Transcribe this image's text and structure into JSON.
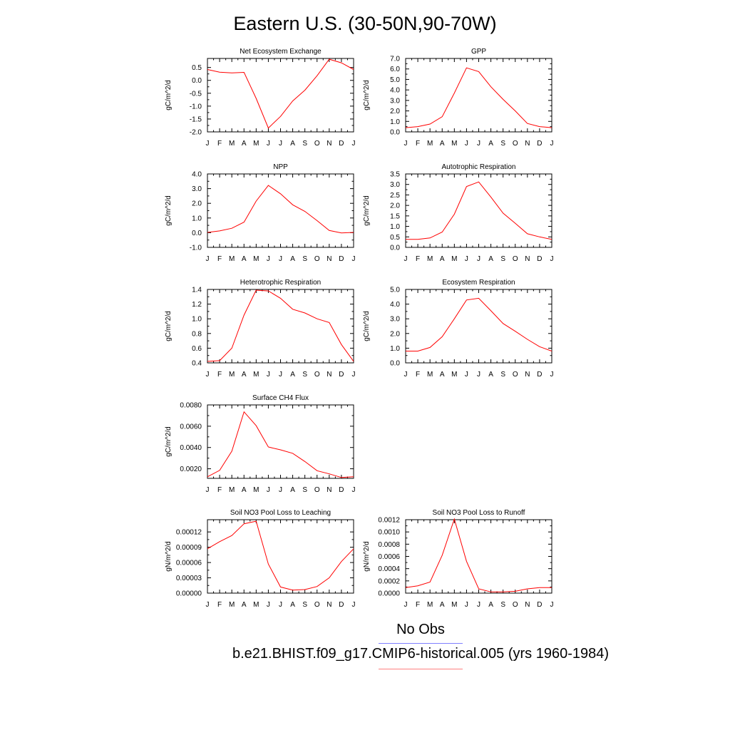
{
  "title": "Eastern U.S. (30-50N,90-70W)",
  "months": [
    "J",
    "F",
    "M",
    "A",
    "M",
    "J",
    "J",
    "A",
    "S",
    "O",
    "N",
    "D",
    "J"
  ],
  "colors": {
    "model": "#ff0000",
    "obs": "#8080ff",
    "model_legend": "#ff8080",
    "axis": "#000000"
  },
  "legend": {
    "obs_label": "No Obs",
    "model_label": "b.e21.BHIST.f09_g17.CMIP6-historical.005 (yrs 1960-1984)"
  },
  "chart_data": [
    {
      "type": "line",
      "title": "Net Ecosystem Exchange",
      "ylabel": "gC/m^2/d",
      "ylim": [
        -2.0,
        0.85
      ],
      "yticks": [
        -2.0,
        -1.5,
        -1.0,
        -0.5,
        0.0,
        0.5
      ],
      "ytick_labels": [
        "-2.0",
        "-1.5",
        "-1.0",
        "-0.5",
        "0.0",
        "0.5"
      ],
      "values": [
        0.42,
        0.32,
        0.29,
        0.31,
        -0.7,
        -1.85,
        -1.4,
        -0.8,
        -0.38,
        0.18,
        0.82,
        0.68,
        0.42
      ]
    },
    {
      "type": "line",
      "title": "GPP",
      "ylabel": "gC/m^2/d",
      "ylim": [
        0.0,
        7.0
      ],
      "yticks": [
        0,
        1,
        2,
        3,
        4,
        5,
        6,
        7
      ],
      "ytick_labels": [
        "0.0",
        "1.0",
        "2.0",
        "3.0",
        "4.0",
        "5.0",
        "6.0",
        "7.0"
      ],
      "values": [
        0.4,
        0.5,
        0.75,
        1.45,
        3.7,
        6.1,
        5.75,
        4.3,
        3.1,
        2.0,
        0.8,
        0.5,
        0.4
      ]
    },
    {
      "type": "line",
      "title": "NPP",
      "ylabel": "gC/m^2/d",
      "ylim": [
        -1.0,
        4.0
      ],
      "yticks": [
        -1,
        0,
        1,
        2,
        3,
        4
      ],
      "ytick_labels": [
        "-1.0",
        "0.0",
        "1.0",
        "2.0",
        "3.0",
        "4.0"
      ],
      "values": [
        0.02,
        0.12,
        0.3,
        0.72,
        2.15,
        3.22,
        2.65,
        1.9,
        1.45,
        0.82,
        0.15,
        -0.02,
        0.02
      ]
    },
    {
      "type": "line",
      "title": "Autotrophic Respiration",
      "ylabel": "gC/m^2/d",
      "ylim": [
        0.0,
        3.5
      ],
      "yticks": [
        0,
        0.5,
        1,
        1.5,
        2,
        2.5,
        3,
        3.5
      ],
      "ytick_labels": [
        "0.0",
        "0.5",
        "1.0",
        "1.5",
        "2.0",
        "2.5",
        "3.0",
        "3.5"
      ],
      "values": [
        0.38,
        0.38,
        0.45,
        0.73,
        1.58,
        2.9,
        3.12,
        2.4,
        1.63,
        1.15,
        0.65,
        0.5,
        0.38
      ]
    },
    {
      "type": "line",
      "title": "Heterotrophic Respiration",
      "ylabel": "gC/m^2/d",
      "ylim": [
        0.4,
        1.4
      ],
      "yticks": [
        0.4,
        0.6,
        0.8,
        1.0,
        1.2,
        1.4
      ],
      "ytick_labels": [
        "0.4",
        "0.6",
        "0.8",
        "1.0",
        "1.2",
        "1.4"
      ],
      "values": [
        0.42,
        0.43,
        0.6,
        1.05,
        1.39,
        1.38,
        1.28,
        1.13,
        1.08,
        1.0,
        0.95,
        0.65,
        0.42
      ]
    },
    {
      "type": "line",
      "title": "Ecosystem Respiration",
      "ylabel": "gC/m^2/d",
      "ylim": [
        0.0,
        5.0
      ],
      "yticks": [
        0,
        1,
        2,
        3,
        4,
        5
      ],
      "ytick_labels": [
        "0.0",
        "1.0",
        "2.0",
        "3.0",
        "4.0",
        "5.0"
      ],
      "values": [
        0.8,
        0.8,
        1.05,
        1.78,
        3.0,
        4.28,
        4.4,
        3.55,
        2.68,
        2.15,
        1.6,
        1.1,
        0.8
      ]
    },
    {
      "type": "line",
      "title": "Surface CH4 Flux",
      "ylabel": "gC/m^2/d",
      "ylim": [
        0.0011,
        0.008
      ],
      "yticks": [
        0.002,
        0.004,
        0.006,
        0.008
      ],
      "ytick_labels": [
        "0.0020",
        "0.0040",
        "0.0060",
        "0.0080"
      ],
      "values": [
        0.00125,
        0.00185,
        0.00365,
        0.00735,
        0.00605,
        0.00405,
        0.00378,
        0.00345,
        0.00268,
        0.00182,
        0.00152,
        0.00118,
        0.00125
      ]
    },
    {
      "type": "line",
      "title": "Soil NO3 Pool Loss to Leaching",
      "ylabel": "gN/m^2/d",
      "ylim": [
        0.0,
        0.000144
      ],
      "yticks": [
        0,
        3e-05,
        6e-05,
        9e-05,
        0.00012
      ],
      "ytick_labels": [
        "0.00000",
        "0.00003",
        "0.00006",
        "0.00009",
        "0.00012"
      ],
      "values": [
        8.7e-05,
        0.000101,
        0.000113,
        0.000136,
        0.000141,
        5.7e-05,
        1.2e-05,
        6e-06,
        7e-06,
        1.3e-05,
        3e-05,
        6.2e-05,
        8.7e-05
      ]
    },
    {
      "type": "line",
      "title": "Soil NO3 Pool Loss to Runoff",
      "ylabel": "gN/m^2/d",
      "ylim": [
        0.0,
        0.0012
      ],
      "yticks": [
        0,
        0.0002,
        0.0004,
        0.0006,
        0.0008,
        0.001,
        0.0012
      ],
      "ytick_labels": [
        "0.0000",
        "0.0002",
        "0.0004",
        "0.0006",
        "0.0008",
        "0.0010",
        "0.0012"
      ],
      "values": [
        9e-05,
        0.00012,
        0.00018,
        0.00062,
        0.00121,
        0.00052,
        7e-05,
        2e-05,
        2e-05,
        3e-05,
        7e-05,
        9e-05,
        9e-05
      ]
    }
  ]
}
